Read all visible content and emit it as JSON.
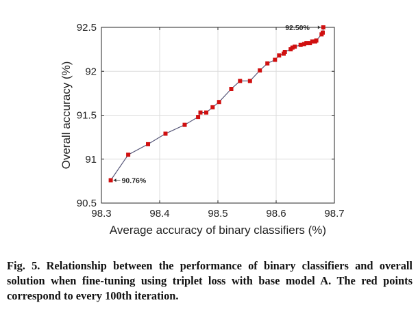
{
  "chart_data": {
    "type": "line",
    "xlabel": "Average accuracy of binary classifiers (%)",
    "ylabel": "Overall accuracy (%)",
    "xlim": [
      98.3,
      98.7
    ],
    "ylim": [
      90.5,
      92.5
    ],
    "xticks": [
      "98.3",
      "98.4",
      "98.5",
      "98.6",
      "98.7"
    ],
    "yticks": [
      "90.5",
      "91",
      "91.5",
      "92",
      "92.5"
    ],
    "grid": true,
    "line_color": "#555577",
    "marker_color": "#d01010",
    "series": [
      {
        "x": [
          98.316,
          98.346,
          98.38,
          98.41,
          98.443,
          98.466,
          98.47,
          98.48,
          98.491,
          98.502,
          98.523,
          98.538,
          98.555,
          98.572,
          98.585,
          98.598,
          98.605,
          98.613,
          98.615,
          98.625,
          98.628,
          98.632,
          98.642,
          98.648,
          98.652,
          98.658,
          98.662,
          98.667,
          98.669,
          98.678,
          98.68,
          98.681
        ],
        "y": [
          90.76,
          91.05,
          91.17,
          91.29,
          91.39,
          91.48,
          91.53,
          91.53,
          91.59,
          91.65,
          91.8,
          91.89,
          91.89,
          92.01,
          92.09,
          92.13,
          92.18,
          92.2,
          92.22,
          92.25,
          92.27,
          92.28,
          92.3,
          92.31,
          92.32,
          92.32,
          92.34,
          92.34,
          92.35,
          92.42,
          92.44,
          92.5
        ]
      }
    ],
    "annotations": [
      {
        "text": "90.76%",
        "x": 98.316,
        "y": 90.76
      },
      {
        "text": "92.50%",
        "x": 98.681,
        "y": 92.5
      }
    ]
  },
  "caption": "Fig. 5. Relationship between the performance of binary classifiers and overall solution when fine-tuning using triplet loss with base model A. The red points correspond to every 100th iteration."
}
